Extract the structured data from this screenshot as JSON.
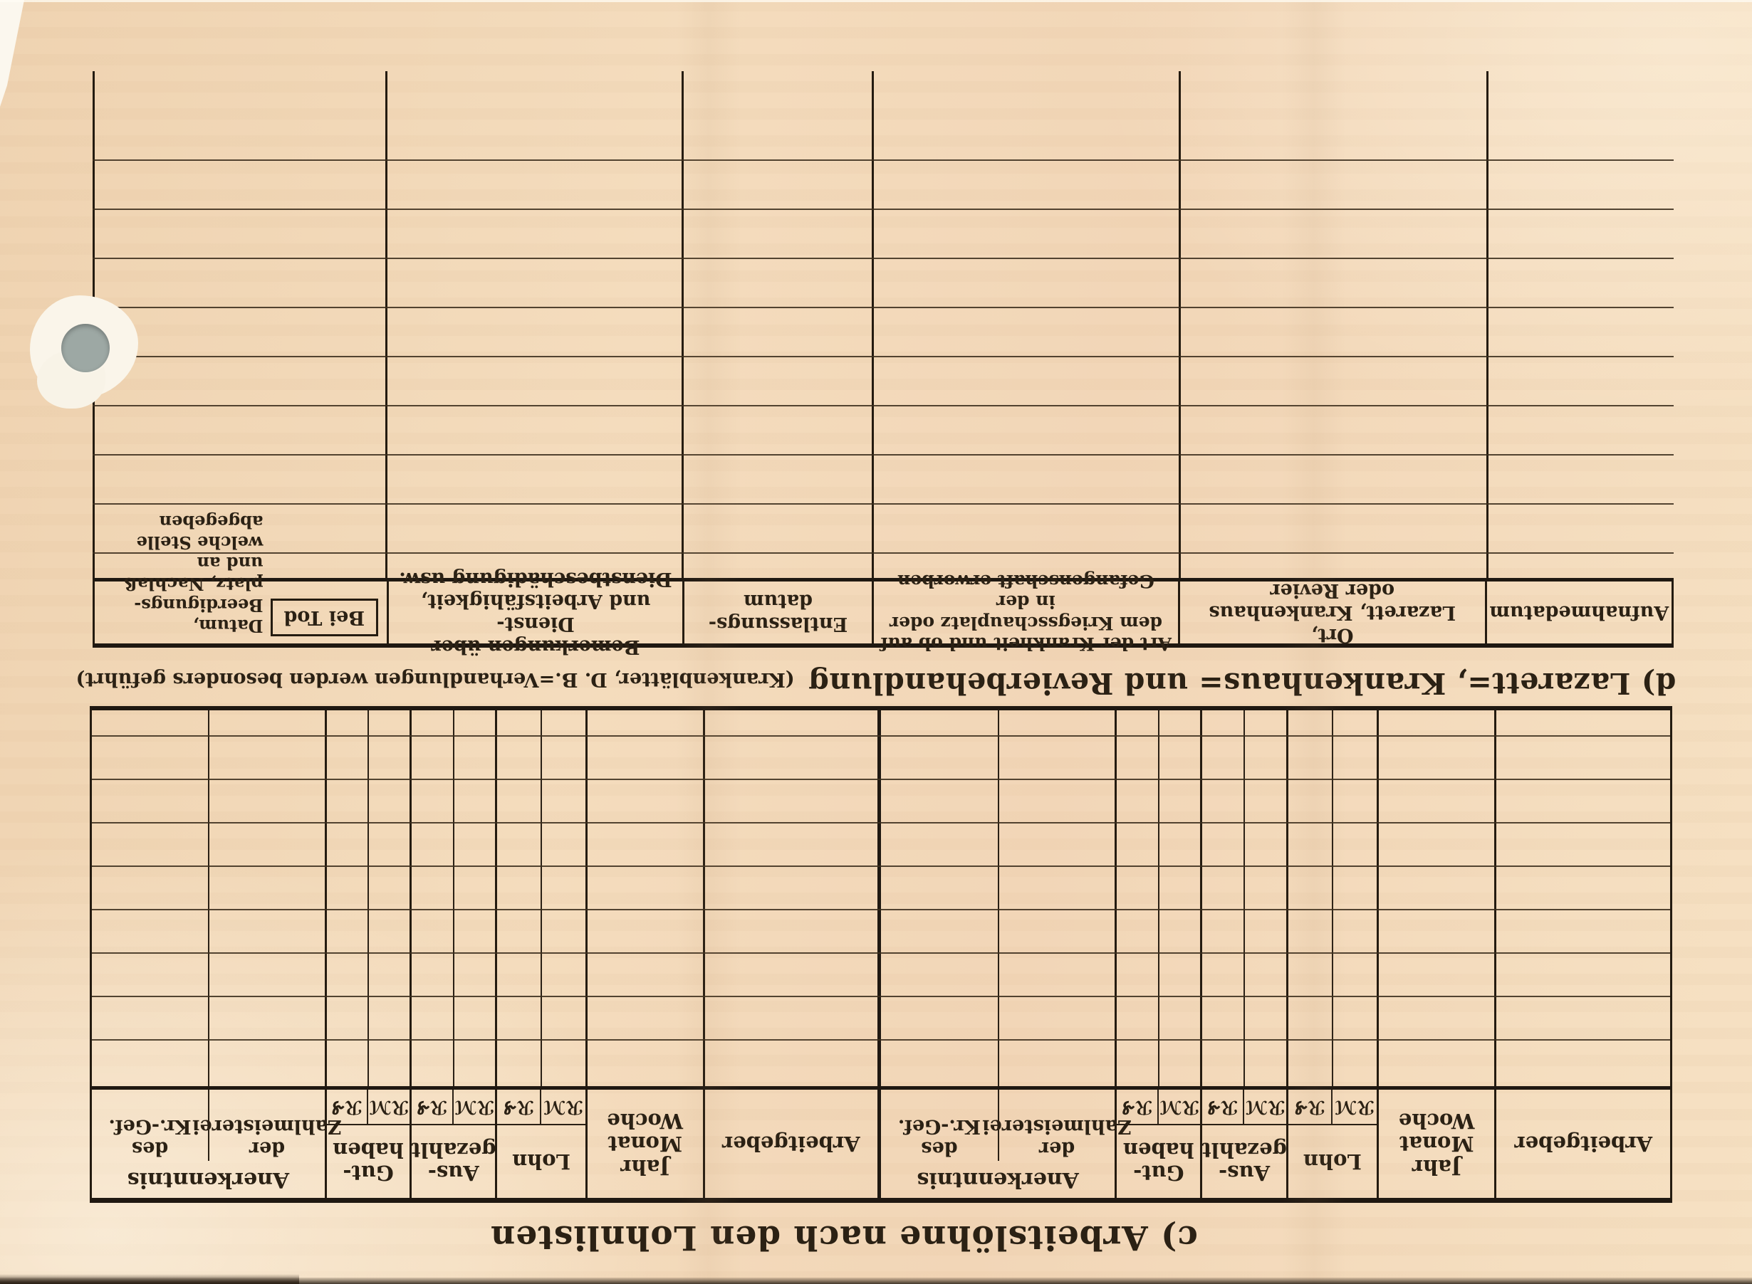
{
  "section_c": {
    "title": "c) Arbeitslöhne nach den Lohnlisten",
    "header": {
      "arbeitgeber": "Arbeitgeber",
      "jahr_monat_woche": "Jahr\nMonat\nWoche",
      "lohn": "Lohn",
      "ausgezahlt": "Aus-\ngezahlt",
      "guthaben": "Gut-\nhaben",
      "anerkenntnis": "Anerkenntnis",
      "anerkenntnis_sub_left": "der\nZahlmeisterei",
      "anerkenntnis_sub_right": "des\nKr.-Gef.",
      "currency_mark": "ℛℳ",
      "currency_pfennig": "ℛ₰"
    }
  },
  "section_d": {
    "title": "d) Lazarett=, Krankenhaus= und Revierbehandlung",
    "title_note": "(Krankenblätter, D. B.=Verhandlungen werden besonders geführt)",
    "header": {
      "aufnahmedatum": "Aufnahmedatum",
      "ort": "Ort,\nLazarett, Krankenhaus\noder Revier",
      "art": "Art der Krankheit und ob auf\ndem Kriegsschauplatz oder in der\nGefangenschaft erworben",
      "entlassung": "Entlassungs-\ndatum",
      "bemerkungen": "Bemerkungen über Dienst-\nund Arbeitsfähigkeit,\nDienstbeschädigung usw.",
      "bei_tod_label": "Bei Tod",
      "bei_tod_text": "Datum, Beerdigungs-\nplatz, Nachlaß und an\nwelche Stelle abgegeben"
    }
  }
}
